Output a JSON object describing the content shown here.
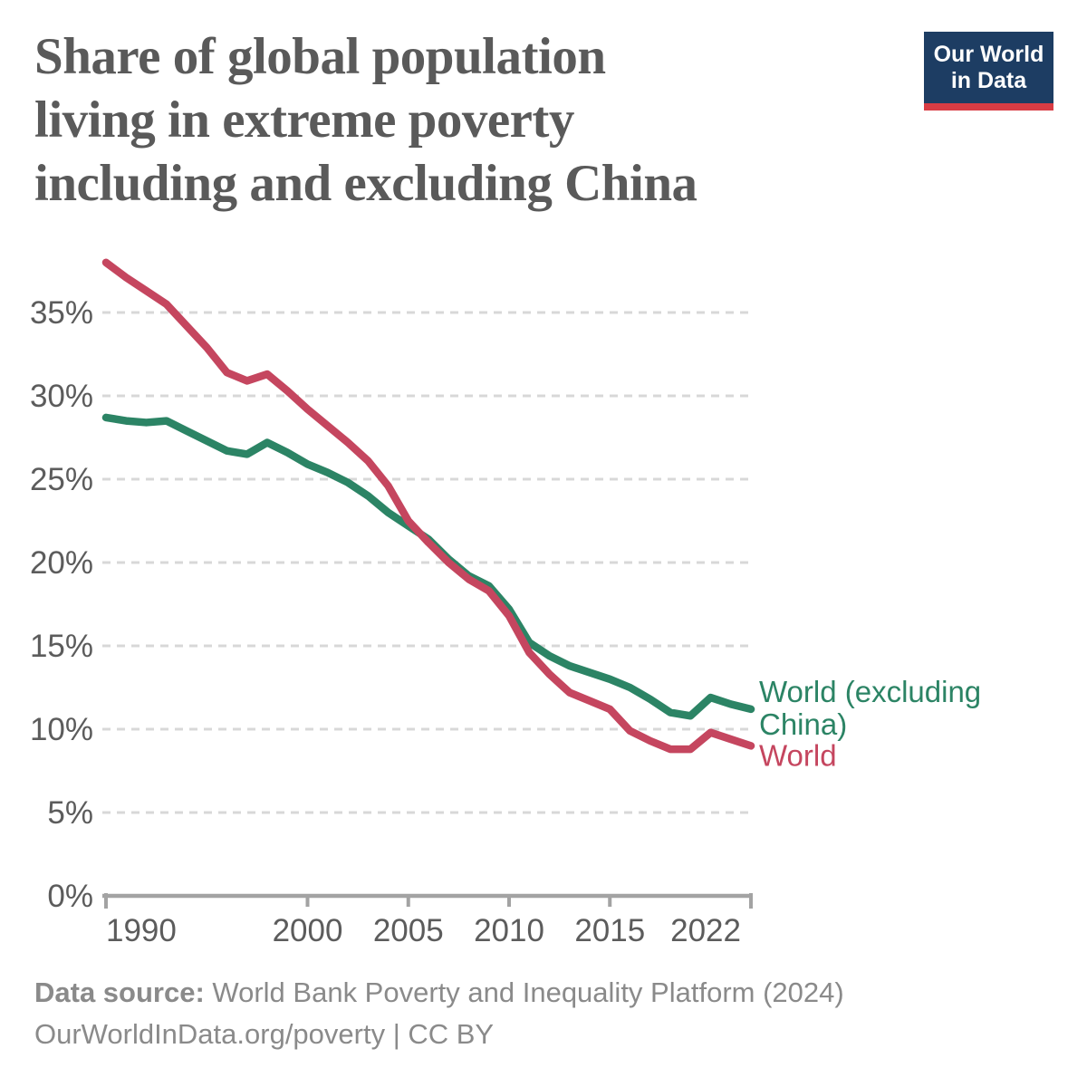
{
  "page": {
    "title": "Share of global population\nliving in extreme poverty\nincluding and excluding China",
    "logo": {
      "text": "Our World\nin Data",
      "bg_color": "#1d3d63",
      "bar_color": "#d83c44"
    },
    "footer": {
      "label": "Data source:",
      "source": " World Bank Poverty and Inequality Platform (2024)",
      "line2": "OurWorldInData.org/poverty | CC BY"
    }
  },
  "chart_data": {
    "type": "line",
    "title": "Share of global population living in extreme poverty including and excluding China",
    "xlabel": "",
    "ylabel": "",
    "ylim": [
      0,
      38.5
    ],
    "yticks": [
      0,
      5,
      10,
      15,
      20,
      25,
      30,
      35
    ],
    "ytick_suffix": "%",
    "xticks": [
      1990,
      2000,
      2005,
      2010,
      2015,
      2022
    ],
    "grid": "horizontal-dashed",
    "grid_color": "#d8d8d8",
    "axis_color": "#a3a3a3",
    "legend_position": "right-end-of-line",
    "x": [
      1990,
      1991,
      1992,
      1993,
      1994,
      1995,
      1996,
      1997,
      1998,
      1999,
      2000,
      2001,
      2002,
      2003,
      2004,
      2005,
      2006,
      2007,
      2008,
      2009,
      2010,
      2011,
      2012,
      2013,
      2014,
      2015,
      2016,
      2017,
      2018,
      2019,
      2020,
      2021,
      2022
    ],
    "series": [
      {
        "name": "World (excluding China)",
        "label_lines": [
          "World (excluding",
          "China)"
        ],
        "color": "#2c8465",
        "values": [
          28.7,
          28.5,
          28.4,
          28.5,
          27.9,
          27.3,
          26.7,
          26.5,
          27.2,
          26.6,
          25.9,
          25.4,
          24.8,
          24.0,
          23.0,
          22.2,
          21.4,
          20.2,
          19.2,
          18.6,
          17.2,
          15.2,
          14.4,
          13.8,
          13.4,
          13.0,
          12.5,
          11.8,
          11.0,
          10.8,
          11.9,
          11.5,
          11.2
        ]
      },
      {
        "name": "World",
        "label_lines": [
          "World"
        ],
        "color": "#c5465f",
        "values": [
          38.0,
          37.1,
          36.3,
          35.5,
          34.2,
          32.9,
          31.4,
          30.9,
          31.3,
          30.3,
          29.2,
          28.2,
          27.2,
          26.1,
          24.6,
          22.5,
          21.2,
          20.0,
          19.0,
          18.3,
          16.8,
          14.6,
          13.3,
          12.2,
          11.7,
          11.2,
          9.9,
          9.3,
          8.8,
          8.8,
          9.8,
          9.4,
          9.0
        ]
      }
    ]
  }
}
